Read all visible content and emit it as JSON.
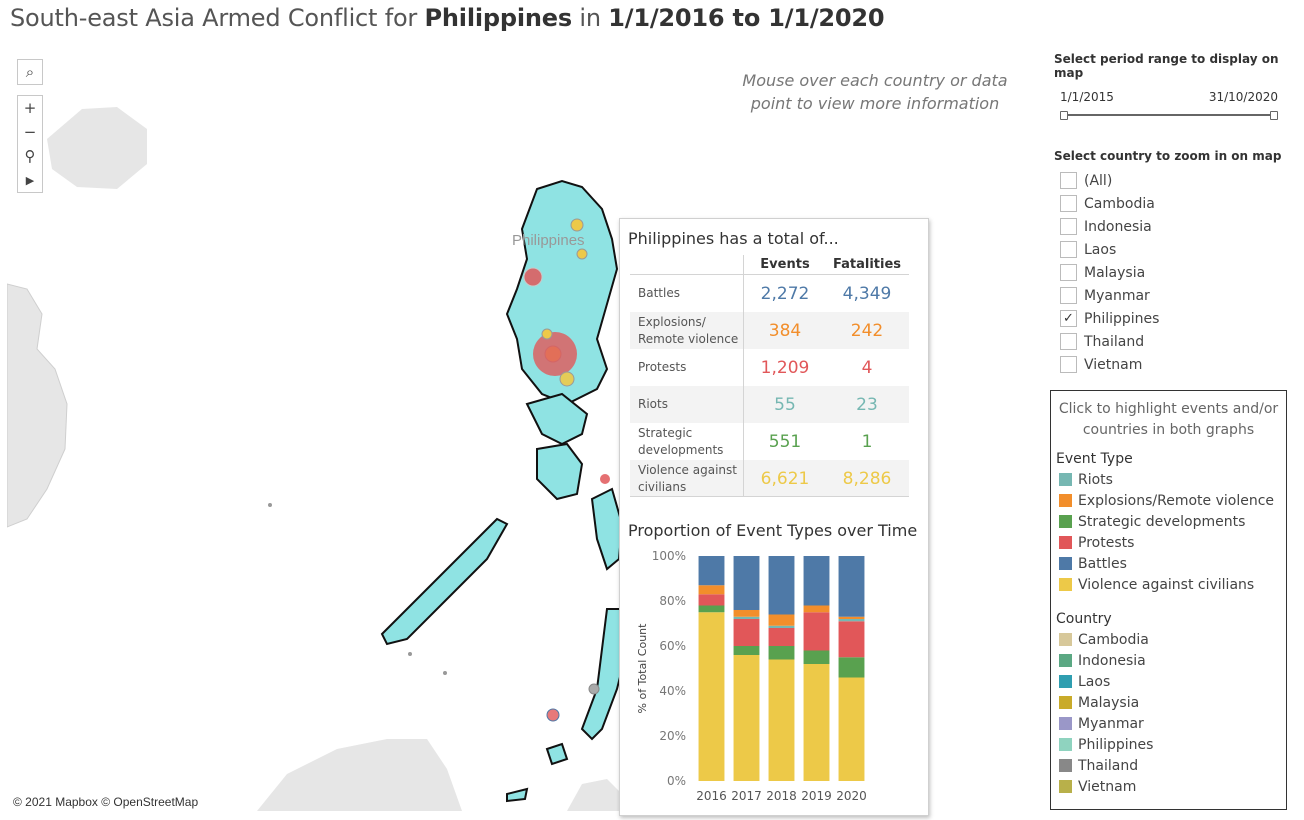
{
  "title": {
    "prefix": "South-east Asia Armed Conflict for ",
    "country": "Philippines",
    "mid": " in ",
    "range": "1/1/2016 to 1/1/2020"
  },
  "map": {
    "hint": "Mouse over each country or data point to view more information",
    "attribution": "© 2021 Mapbox © OpenStreetMap",
    "country_label": "Philippines",
    "land_color": "#8fe3e3",
    "bg_land_color": "#e6e6e6"
  },
  "tooltip": {
    "heading": "Philippines has a total of...",
    "col_events": "Events",
    "col_fatalities": "Fatalities",
    "rows": [
      {
        "label": "Battles",
        "events": "2,272",
        "fatalities": "4,349",
        "color": "#4e79a7"
      },
      {
        "label": "Explosions/ Remote violence",
        "events": "384",
        "fatalities": "242",
        "color": "#f28e2b"
      },
      {
        "label": "Protests",
        "events": "1,209",
        "fatalities": "4",
        "color": "#e15759"
      },
      {
        "label": "Riots",
        "events": "55",
        "fatalities": "23",
        "color": "#76b7b2"
      },
      {
        "label": "Strategic developments",
        "events": "551",
        "fatalities": "1",
        "color": "#59a14f"
      },
      {
        "label": "Violence against civilians",
        "events": "6,621",
        "fatalities": "8,286",
        "color": "#edc948"
      }
    ]
  },
  "chart_data": {
    "type": "bar",
    "stacked": true,
    "title": "Proportion of Event Types over Time",
    "ylabel": "% of Total Count",
    "ylim": [
      0,
      100
    ],
    "yticks": [
      "0%",
      "20%",
      "40%",
      "60%",
      "80%",
      "100%"
    ],
    "categories": [
      "2016",
      "2017",
      "2018",
      "2019",
      "2020"
    ],
    "series": [
      {
        "name": "Violence against civilians",
        "color": "#edc948",
        "values": [
          75,
          56,
          54,
          52,
          46
        ]
      },
      {
        "name": "Strategic developments",
        "color": "#59a14f",
        "values": [
          3,
          4,
          6,
          6,
          9
        ]
      },
      {
        "name": "Protests",
        "color": "#e15759",
        "values": [
          5,
          12,
          8,
          17,
          16
        ]
      },
      {
        "name": "Riots",
        "color": "#76b7b2",
        "values": [
          0,
          1,
          1,
          0,
          1
        ]
      },
      {
        "name": "Explosions/Remote violence",
        "color": "#f28e2b",
        "values": [
          4,
          3,
          5,
          3,
          1
        ]
      },
      {
        "name": "Battles",
        "color": "#4e79a7",
        "values": [
          13,
          24,
          26,
          22,
          27
        ]
      }
    ]
  },
  "controls": {
    "period_label": "Select period range to display on map",
    "range_start": "1/1/2015",
    "range_end": "31/10/2020",
    "country_label": "Select country to zoom in on map",
    "countries": [
      {
        "name": "(All)",
        "checked": false
      },
      {
        "name": "Cambodia",
        "checked": false
      },
      {
        "name": "Indonesia",
        "checked": false
      },
      {
        "name": "Laos",
        "checked": false
      },
      {
        "name": "Malaysia",
        "checked": false
      },
      {
        "name": "Myanmar",
        "checked": false
      },
      {
        "name": "Philippines",
        "checked": true
      },
      {
        "name": "Thailand",
        "checked": false
      },
      {
        "name": "Vietnam",
        "checked": false
      }
    ]
  },
  "legend": {
    "hint": "Click to highlight events and/or countries in both graphs",
    "event_title": "Event Type",
    "events": [
      {
        "name": "Riots",
        "color": "#76b7b2"
      },
      {
        "name": "Explosions/Remote violence",
        "color": "#f28e2b"
      },
      {
        "name": "Strategic developments",
        "color": "#59a14f"
      },
      {
        "name": "Protests",
        "color": "#e15759"
      },
      {
        "name": "Battles",
        "color": "#4e79a7"
      },
      {
        "name": "Violence against civilians",
        "color": "#edc948"
      }
    ],
    "country_title": "Country",
    "countries": [
      {
        "name": "Cambodia",
        "color": "#d7c89a"
      },
      {
        "name": "Indonesia",
        "color": "#5ba883"
      },
      {
        "name": "Laos",
        "color": "#2f9eb0"
      },
      {
        "name": "Malaysia",
        "color": "#c9ab2a"
      },
      {
        "name": "Myanmar",
        "color": "#9a97c8"
      },
      {
        "name": "Philippines",
        "color": "#8fd3bf"
      },
      {
        "name": "Thailand",
        "color": "#888888"
      },
      {
        "name": "Vietnam",
        "color": "#b8b04a"
      }
    ]
  }
}
